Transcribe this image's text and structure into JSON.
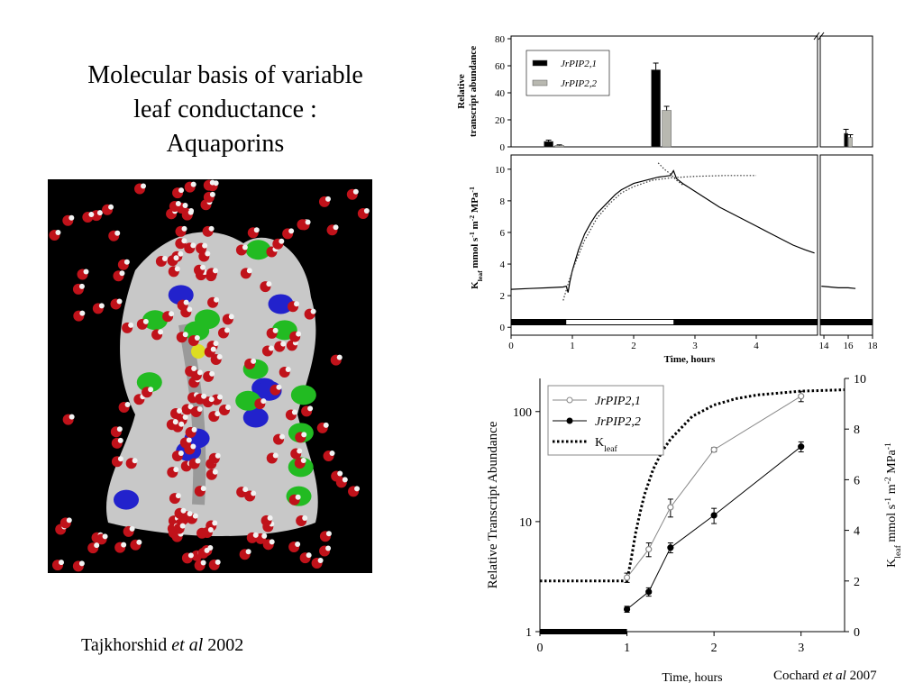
{
  "slide": {
    "title_lines": [
      "Molecular basis of variable",
      "leaf conductance :",
      "Aquaporins"
    ],
    "caption": [
      "Tajkhorshid ",
      "et al",
      " 2002"
    ],
    "credit": [
      "Cochard ",
      "et al",
      " 2007"
    ]
  },
  "chart_data": [
    {
      "type": "bar",
      "ylabel_lines": [
        "Relative",
        "transcript abundance"
      ],
      "x_segments": [
        [
          0,
          5
        ],
        [
          13.7,
          18
        ]
      ],
      "ylim": [
        0,
        82
      ],
      "yticks": [
        0,
        20,
        40,
        60,
        80
      ],
      "x": [
        0.7,
        2.45,
        16
      ],
      "legend": "upper-left",
      "series": [
        {
          "name": "JrPIP2,1",
          "color": "#000000",
          "values": [
            4,
            57,
            10
          ],
          "errors": [
            1,
            5,
            3
          ]
        },
        {
          "name": "JrPIP2,2",
          "color": "#b8b8b0",
          "values": [
            1,
            27,
            7
          ],
          "errors": [
            0.5,
            3,
            2
          ]
        }
      ]
    },
    {
      "type": "line",
      "xlabel": "Time, hours",
      "ylabel_parts": [
        "K",
        "leaf",
        " mmol s",
        "-1",
        " m",
        "-2",
        " MPa",
        "-1"
      ],
      "ylabel_styles": [
        "normal",
        "sub",
        "normal",
        "sup",
        "normal",
        "sup",
        "normal",
        "sup"
      ],
      "x_segments": [
        [
          0,
          5
        ],
        [
          13.7,
          18
        ]
      ],
      "xticks": [
        0,
        1,
        2,
        3,
        4,
        14,
        16,
        18
      ],
      "ylim": [
        -0.5,
        10.9
      ],
      "yticks": [
        0,
        2,
        4,
        6,
        8,
        10
      ],
      "light_period": [
        0.9,
        2.65
      ],
      "series": [
        {
          "color": "#000000",
          "style": "solid",
          "x": [
            0,
            0.3,
            0.6,
            0.85,
            0.9,
            0.93,
            0.96,
            1.0,
            1.1,
            1.2,
            1.3,
            1.4,
            1.5,
            1.6,
            1.7,
            1.8,
            1.9,
            2.0,
            2.1,
            2.2,
            2.3,
            2.4,
            2.5,
            2.6,
            2.65,
            2.7,
            2.8,
            3.0,
            3.2,
            3.4,
            3.6,
            3.8,
            4.0,
            4.2,
            4.4,
            4.6,
            4.8,
            4.95,
            9,
            13.8,
            14.5,
            15.2,
            16,
            16.6
          ],
          "values": [
            2.4,
            2.45,
            2.5,
            2.55,
            2.6,
            2.2,
            2.9,
            3.6,
            4.9,
            5.9,
            6.6,
            7.2,
            7.6,
            8.0,
            8.4,
            8.7,
            8.9,
            9.1,
            9.2,
            9.3,
            9.4,
            9.5,
            9.55,
            9.6,
            9.9,
            9.4,
            9.1,
            8.6,
            8.1,
            7.6,
            7.2,
            6.8,
            6.4,
            6.0,
            5.6,
            5.2,
            4.9,
            4.7,
            null,
            2.6,
            2.55,
            2.5,
            2.5,
            2.45
          ]
        },
        {
          "color": "#333333",
          "style": "dotted",
          "x": [
            0.85,
            0.95,
            1.05,
            1.2,
            1.4,
            1.6,
            1.8,
            2.0,
            2.3,
            2.6,
            3.0,
            3.5,
            4.0
          ],
          "values": [
            1.7,
            3.0,
            4.1,
            5.5,
            6.9,
            7.8,
            8.5,
            8.9,
            9.3,
            9.45,
            9.55,
            9.6,
            9.6
          ]
        },
        {
          "color": "#333333",
          "style": "dotted",
          "x": [
            2.4,
            2.5,
            2.6,
            2.7,
            2.8
          ],
          "values": [
            10.4,
            10.0,
            9.7,
            9.3,
            9.0
          ]
        }
      ]
    },
    {
      "type": "line",
      "xlabel": "Time, hours",
      "ylabel": "Relative Transcript Abundance",
      "y2label_parts": [
        "K",
        "leaf",
        " mmol s",
        "-1",
        " m",
        "-2",
        " MPa",
        "-1"
      ],
      "y2label_styles": [
        "normal",
        "sub",
        "normal",
        "sup",
        "normal",
        "sup",
        "normal",
        "sup"
      ],
      "xlim": [
        0,
        3.5
      ],
      "xticks": [
        0,
        1,
        2,
        3
      ],
      "ylim": [
        1,
        200
      ],
      "yticks": [
        1,
        10,
        100
      ],
      "log_y": true,
      "y2lim": [
        0,
        10
      ],
      "y2ticks": [
        0,
        2,
        4,
        6,
        8,
        10
      ],
      "dark_period": [
        0,
        1
      ],
      "legend": "upper-left",
      "series": [
        {
          "name": "JrPIP2,1",
          "color": "#888888",
          "marker": "open",
          "style": "solid",
          "x": [
            1,
            1.25,
            1.5,
            2,
            3
          ],
          "values": [
            3.1,
            5.6,
            13.5,
            45,
            138
          ],
          "errors": [
            0.3,
            0.8,
            2.5,
            2,
            15
          ]
        },
        {
          "name": "JrPIP2,2",
          "color": "#000000",
          "marker": "filled",
          "style": "solid",
          "x": [
            1,
            1.25,
            1.5,
            2,
            3
          ],
          "values": [
            1.6,
            2.3,
            5.8,
            11.4,
            48
          ],
          "errors": [
            0.1,
            0.2,
            0.6,
            1.8,
            5
          ]
        },
        {
          "name": "K",
          "name_sub": "leaf",
          "color": "#000000",
          "style": "dotted",
          "axis": "y2",
          "x": [
            0,
            0.5,
            1.0,
            1.05,
            1.1,
            1.15,
            1.2,
            1.3,
            1.4,
            1.5,
            1.75,
            2.0,
            2.25,
            2.5,
            3.0,
            3.5
          ],
          "values": [
            2,
            2,
            2,
            2.9,
            3.9,
            4.7,
            5.4,
            6.4,
            7.1,
            7.6,
            8.5,
            8.95,
            9.2,
            9.35,
            9.5,
            9.55
          ]
        }
      ]
    }
  ]
}
